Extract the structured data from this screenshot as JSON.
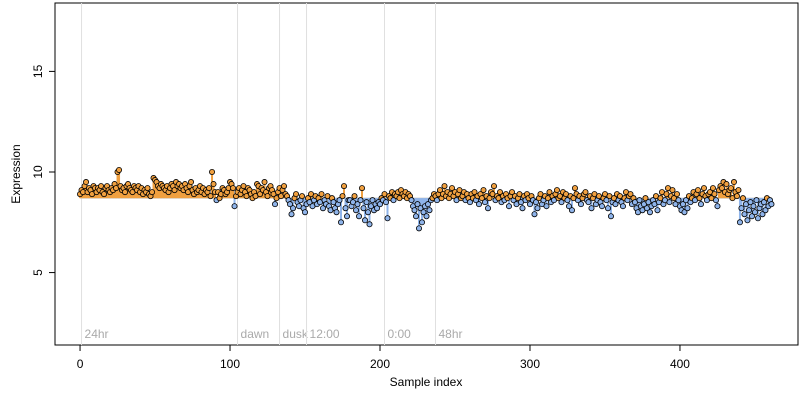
{
  "chart_data": {
    "type": "lollipop-scatter",
    "xlabel": "Sample index",
    "ylabel": "Expression",
    "xlim": [
      -16.7,
      478.7
    ],
    "ylim": [
      1.4,
      18.4
    ],
    "xticks": [
      0,
      100,
      200,
      300,
      400
    ],
    "yticks": [
      5,
      10,
      15
    ],
    "baseline": 8.7,
    "above_color": "#f0a040",
    "below_color": "#8fb4ea",
    "point_stroke": "#000000",
    "annotations": [
      {
        "label": "24hr",
        "x": 1
      },
      {
        "label": "dawn",
        "x": 105
      },
      {
        "label": "dusk",
        "x": 133
      },
      {
        "label": "12:00",
        "x": 151
      },
      {
        "label": "0:00",
        "x": 203
      },
      {
        "label": "48hr",
        "x": 237
      }
    ],
    "values": [
      8.9,
      9.1,
      9.0,
      9.3,
      9.5,
      9.0,
      9.2,
      9.1,
      8.9,
      9.3,
      9.2,
      9.0,
      9.2,
      9.1,
      9.3,
      9.0,
      8.9,
      9.2,
      9.3,
      9.1,
      9.0,
      9.2,
      9.1,
      9.4,
      9.2,
      10.0,
      10.1,
      9.3,
      9.1,
      9.2,
      9.0,
      9.3,
      9.4,
      9.2,
      9.1,
      9.0,
      9.3,
      9.2,
      9.1,
      9.3,
      9.0,
      9.2,
      8.9,
      9.1,
      9.0,
      9.2,
      8.9,
      8.8,
      9.0,
      9.7,
      9.6,
      9.5,
      9.3,
      9.2,
      9.4,
      9.3,
      9.2,
      9.1,
      9.3,
      9.0,
      9.2,
      9.4,
      9.3,
      9.1,
      9.5,
      9.3,
      9.4,
      9.2,
      9.3,
      9.1,
      9.4,
      9.2,
      9.0,
      9.3,
      9.5,
      9.1,
      8.9,
      9.2,
      9.0,
      9.1,
      9.3,
      9.0,
      9.2,
      8.9,
      9.1,
      9.0,
      9.2,
      8.8,
      10.0,
      9.4,
      9.0,
      8.6,
      9.0,
      8.7,
      8.9,
      9.2,
      9.1,
      8.9,
      9.0,
      9.2,
      9.5,
      9.4,
      9.2,
      8.3,
      8.8,
      9.0,
      9.2,
      8.9,
      9.1,
      9.3,
      9.0,
      8.8,
      9.2,
      9.1,
      8.9,
      8.7,
      9.0,
      8.8,
      9.4,
      9.3,
      8.9,
      9.2,
      9.1,
      9.5,
      9.0,
      8.8,
      9.2,
      9.3,
      9.1,
      8.9,
      8.4,
      8.7,
      9.0,
      9.2,
      8.8,
      9.1,
      9.3,
      8.9,
      8.8,
      8.6,
      8.4,
      7.9,
      8.2,
      8.7,
      8.9,
      8.5,
      8.3,
      8.6,
      8.8,
      8.2,
      8.0,
      8.4,
      8.7,
      8.5,
      8.9,
      8.3,
      8.6,
      8.8,
      8.4,
      8.7,
      8.5,
      8.9,
      8.2,
      8.6,
      8.4,
      8.8,
      8.3,
      8.1,
      8.7,
      8.5,
      8.2,
      8.0,
      8.4,
      8.6,
      7.5,
      8.8,
      9.3,
      8.2,
      7.8,
      8.6,
      8.6,
      8.3,
      8.5,
      8.8,
      8.1,
      8.4,
      7.8,
      8.6,
      9.2,
      8.2,
      7.6,
      8.5,
      8.0,
      7.4,
      8.3,
      8.6,
      8.1,
      8.4,
      8.2,
      8.5,
      8.4,
      8.7,
      8.6,
      8.9,
      8.5,
      7.7,
      8.8,
      8.7,
      9.0,
      8.6,
      8.9,
      8.8,
      9.0,
      8.7,
      9.1,
      8.9,
      8.8,
      9.0,
      8.7,
      8.9,
      8.8,
      8.6,
      8.3,
      8.1,
      7.8,
      8.4,
      7.2,
      8.2,
      7.5,
      8.0,
      8.3,
      7.8,
      8.4,
      8.1,
      8.6,
      8.7,
      8.9,
      8.8,
      8.6,
      8.9,
      9.1,
      8.7,
      8.9,
      9.3,
      8.8,
      9.0,
      8.7,
      8.9,
      9.2,
      8.8,
      9.0,
      8.6,
      8.9,
      9.1,
      8.7,
      8.8,
      9.0,
      8.6,
      8.9,
      8.7,
      8.5,
      8.9,
      8.7,
      9.0,
      8.6,
      8.8,
      8.4,
      8.9,
      8.7,
      9.1,
      8.5,
      8.8,
      8.2,
      8.7,
      9.0,
      8.9,
      9.3,
      8.6,
      8.8,
      8.7,
      9.0,
      8.5,
      8.8,
      8.6,
      8.9,
      8.7,
      8.3,
      8.8,
      9.0,
      8.6,
      8.8,
      8.4,
      8.7,
      8.9,
      8.5,
      8.2,
      8.8,
      8.6,
      8.9,
      8.7,
      8.4,
      8.8,
      8.6,
      7.9,
      8.5,
      8.2,
      8.7,
      8.9,
      8.4,
      8.6,
      8.8,
      8.3,
      8.7,
      9.0,
      8.5,
      8.8,
      8.6,
      8.9,
      9.1,
      8.7,
      8.8,
      8.5,
      9.0,
      8.7,
      8.9,
      8.6,
      8.3,
      8.8,
      8.1,
      8.7,
      9.2,
      8.9,
      8.6,
      8.8,
      8.4,
      8.7,
      8.9,
      9.0,
      8.6,
      8.5,
      8.8,
      8.2,
      8.7,
      8.9,
      8.4,
      8.6,
      8.8,
      8.5,
      8.3,
      8.7,
      8.9,
      8.6,
      8.2,
      8.8,
      7.8,
      8.5,
      8.7,
      8.4,
      8.9,
      8.6,
      8.8,
      8.5,
      8.3,
      8.7,
      9.0,
      8.6,
      8.8,
      8.9,
      8.4,
      8.7,
      8.5,
      8.2,
      8.0,
      8.6,
      8.3,
      8.1,
      8.4,
      8.7,
      8.2,
      8.5,
      8.0,
      8.3,
      8.6,
      8.4,
      8.8,
      8.1,
      8.5,
      8.7,
      9.0,
      8.4,
      8.6,
      8.9,
      9.2,
      8.5,
      8.8,
      9.1,
      8.7,
      8.4,
      8.9,
      8.6,
      8.3,
      8.1,
      8.4,
      8.0,
      8.6,
      8.2,
      8.8,
      8.5,
      8.7,
      9.0,
      8.6,
      8.9,
      9.1,
      8.7,
      8.4,
      8.9,
      9.2,
      8.8,
      8.6,
      8.9,
      9.0,
      8.7,
      9.2,
      8.9,
      8.6,
      8.3,
      9.1,
      9.3,
      9.2,
      9.5,
      9.0,
      9.4,
      8.9,
      9.1,
      9.2,
      8.7,
      9.5,
      9.0,
      8.8,
      9.1,
      7.5,
      8.2,
      8.7,
      7.9,
      8.4,
      7.6,
      8.1,
      8.5,
      7.8,
      8.3,
      8.0,
      8.6,
      7.7,
      8.2,
      8.4,
      7.9,
      8.5,
      8.1,
      8.7,
      8.3,
      8.6,
      8.4
    ]
  }
}
